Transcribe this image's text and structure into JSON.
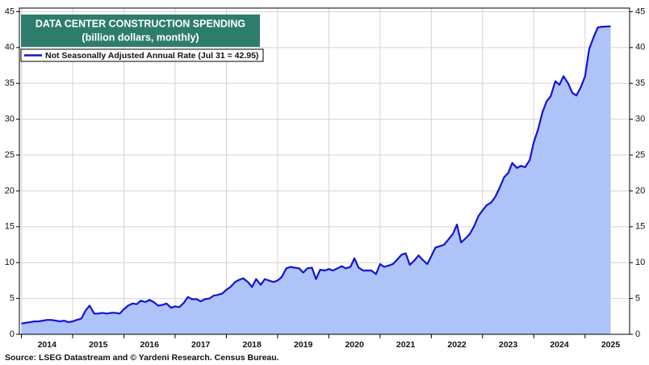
{
  "chart_data": {
    "type": "area",
    "title": "DATA CENTER CONSTRUCTION SPENDING",
    "subtitle": "(billion dollars, monthly)",
    "source": "Source: LSEG Datastream and © Yardeni Research. Census Bureau.",
    "x": [
      2014.0,
      2014.08,
      2014.17,
      2014.25,
      2014.33,
      2014.42,
      2014.5,
      2014.58,
      2014.67,
      2014.75,
      2014.83,
      2014.92,
      2015.0,
      2015.08,
      2015.17,
      2015.25,
      2015.33,
      2015.42,
      2015.5,
      2015.58,
      2015.67,
      2015.75,
      2015.83,
      2015.92,
      2016.0,
      2016.08,
      2016.17,
      2016.25,
      2016.33,
      2016.42,
      2016.5,
      2016.58,
      2016.67,
      2016.75,
      2016.83,
      2016.92,
      2017.0,
      2017.08,
      2017.17,
      2017.25,
      2017.33,
      2017.42,
      2017.5,
      2017.58,
      2017.67,
      2017.75,
      2017.83,
      2017.92,
      2018.0,
      2018.08,
      2018.17,
      2018.25,
      2018.33,
      2018.42,
      2018.5,
      2018.58,
      2018.67,
      2018.75,
      2018.83,
      2018.92,
      2019.0,
      2019.08,
      2019.17,
      2019.25,
      2019.33,
      2019.42,
      2019.5,
      2019.58,
      2019.67,
      2019.75,
      2019.83,
      2019.92,
      2020.0,
      2020.08,
      2020.17,
      2020.25,
      2020.33,
      2020.42,
      2020.5,
      2020.58,
      2020.67,
      2020.75,
      2020.83,
      2020.92,
      2021.0,
      2021.08,
      2021.17,
      2021.25,
      2021.33,
      2021.42,
      2021.5,
      2021.58,
      2021.67,
      2021.75,
      2021.83,
      2021.92,
      2022.0,
      2022.08,
      2022.17,
      2022.25,
      2022.33,
      2022.42,
      2022.5,
      2022.58,
      2022.67,
      2022.75,
      2022.83,
      2022.92,
      2023.0,
      2023.08,
      2023.17,
      2023.25,
      2023.33,
      2023.42,
      2023.5,
      2023.58,
      2023.67,
      2023.75,
      2023.83,
      2023.92,
      2024.0,
      2024.08,
      2024.17,
      2024.25,
      2024.33,
      2024.42,
      2024.5,
      2024.58,
      2024.67,
      2024.75,
      2024.83,
      2024.92,
      2025.0,
      2025.08,
      2025.17,
      2025.25,
      2025.33,
      2025.42,
      2025.5
    ],
    "series": [
      {
        "name": "Not Seasonally Adjusted Annual Rate (Jul 31 = 42.95)",
        "color": "#1414d2",
        "fill": "#aec3f7",
        "values": [
          1.5,
          1.6,
          1.7,
          1.8,
          1.8,
          1.9,
          2.0,
          2.0,
          1.9,
          1.8,
          1.9,
          1.7,
          1.8,
          2.0,
          2.2,
          3.3,
          4.0,
          2.9,
          2.9,
          3.0,
          2.9,
          3.0,
          3.0,
          2.9,
          3.5,
          4.0,
          4.3,
          4.2,
          4.7,
          4.5,
          4.8,
          4.5,
          4.0,
          4.1,
          4.3,
          3.7,
          3.9,
          3.8,
          4.4,
          5.2,
          4.9,
          4.9,
          4.6,
          4.9,
          5.0,
          5.4,
          5.5,
          5.7,
          6.2,
          6.6,
          7.3,
          7.6,
          7.8,
          7.3,
          6.6,
          7.7,
          6.9,
          7.7,
          7.5,
          7.3,
          7.5,
          8.0,
          9.2,
          9.4,
          9.3,
          9.2,
          8.6,
          9.2,
          9.3,
          7.7,
          9.0,
          8.9,
          9.1,
          8.9,
          9.2,
          9.5,
          9.2,
          9.4,
          10.6,
          9.3,
          8.9,
          8.9,
          8.9,
          8.4,
          9.8,
          9.4,
          9.6,
          9.8,
          10.4,
          11.1,
          11.3,
          9.7,
          10.3,
          11.0,
          10.4,
          9.8,
          10.9,
          12.1,
          12.3,
          12.5,
          13.2,
          14.0,
          15.3,
          12.8,
          13.4,
          14.0,
          15.0,
          16.5,
          17.3,
          18.0,
          18.4,
          19.2,
          20.4,
          21.9,
          22.5,
          23.9,
          23.2,
          23.5,
          23.3,
          24.3,
          26.8,
          28.5,
          31.0,
          32.5,
          33.2,
          35.3,
          34.8,
          36.0,
          35.0,
          33.7,
          33.3,
          34.5,
          36.0,
          39.8,
          41.5,
          42.8,
          42.9,
          42.93,
          42.95
        ]
      }
    ],
    "xlim": [
      2013.96,
      2025.87
    ],
    "xticks": [
      2014,
      2015,
      2016,
      2017,
      2018,
      2019,
      2020,
      2021,
      2022,
      2023,
      2024,
      2025
    ],
    "ylim": [
      0,
      45.5
    ],
    "yticks": [
      0,
      5,
      10,
      15,
      20,
      25,
      30,
      35,
      40,
      45
    ],
    "grid": true
  }
}
